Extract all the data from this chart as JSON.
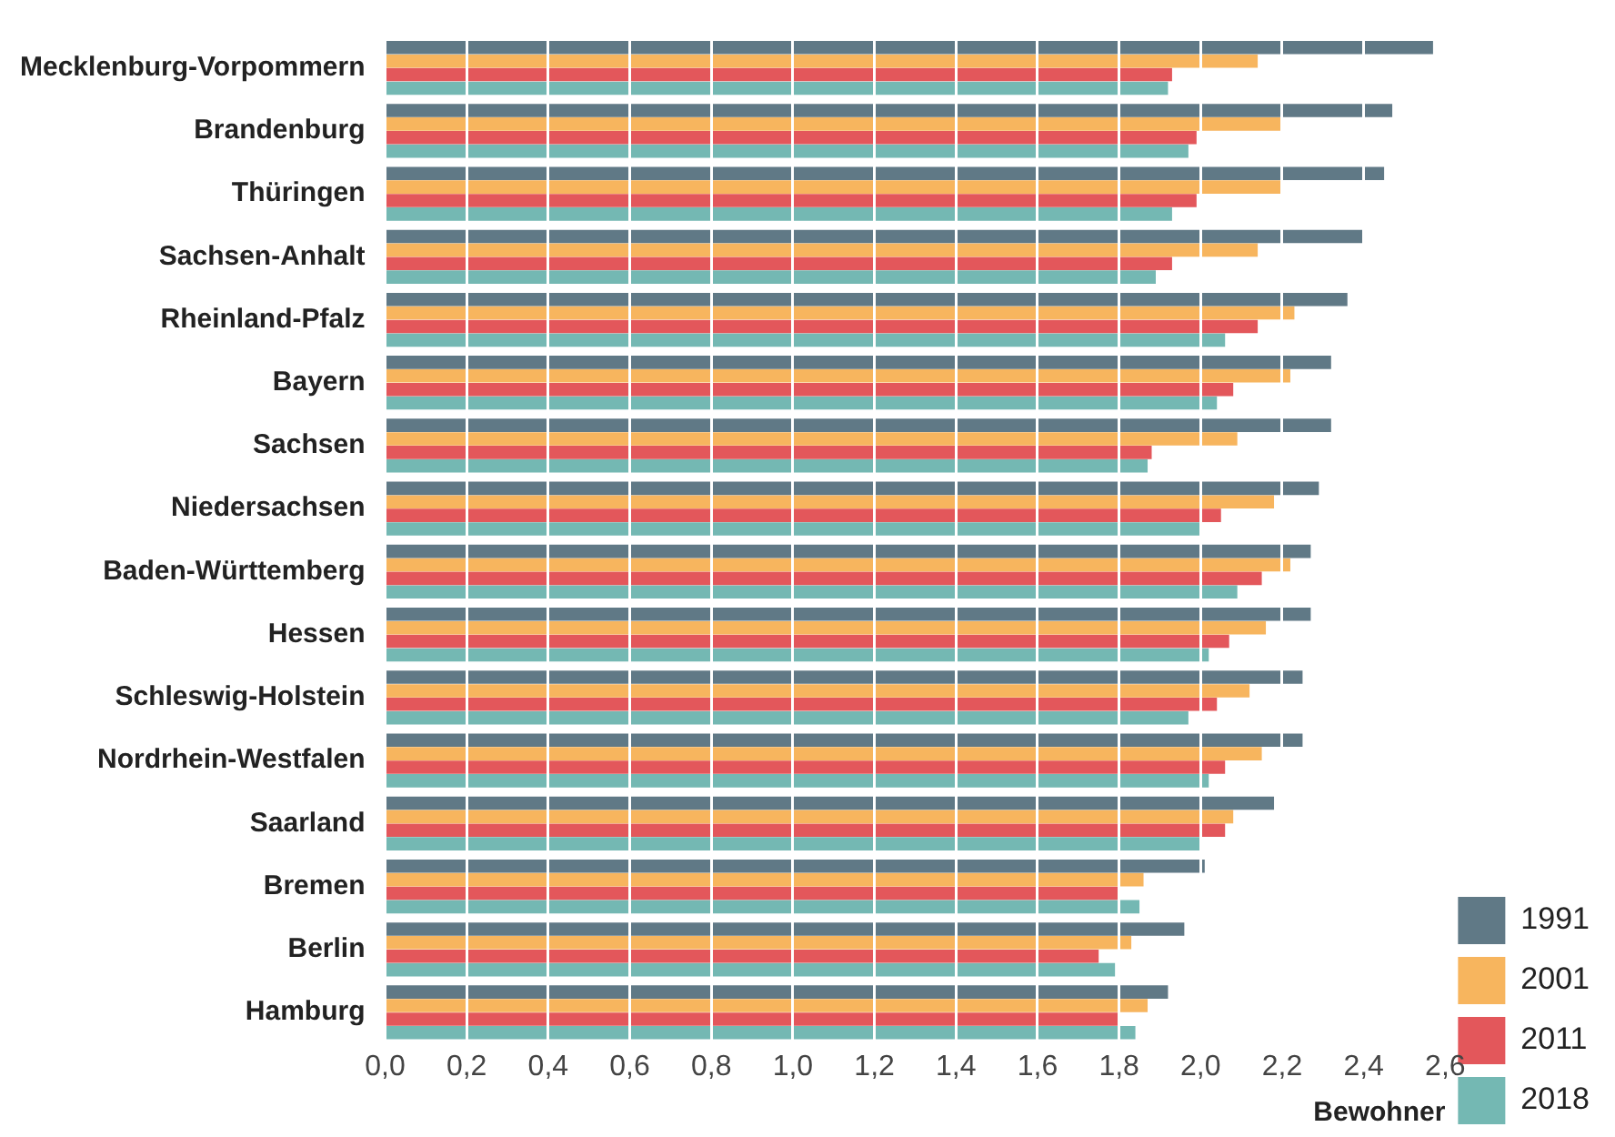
{
  "chart_data": {
    "type": "bar",
    "orientation": "horizontal",
    "xlabel": "Bewohner",
    "categories": [
      "Mecklenburg-Vorpommern",
      "Brandenburg",
      "Thüringen",
      "Sachsen-Anhalt",
      "Rheinland-Pfalz",
      "Bayern",
      "Sachsen",
      "Niedersachsen",
      "Baden-Württemberg",
      "Hessen",
      "Schleswig-Holstein",
      "Nordrhein-Westfalen",
      "Saarland",
      "Bremen",
      "Berlin",
      "Hamburg"
    ],
    "series": [
      {
        "name": "1991",
        "color": "#607986",
        "values": [
          2.57,
          2.47,
          2.45,
          2.4,
          2.36,
          2.32,
          2.32,
          2.29,
          2.27,
          2.27,
          2.25,
          2.25,
          2.18,
          2.01,
          1.96,
          1.92
        ]
      },
      {
        "name": "2001",
        "color": "#f7b55e",
        "values": [
          2.14,
          2.2,
          2.2,
          2.14,
          2.23,
          2.22,
          2.09,
          2.18,
          2.22,
          2.16,
          2.12,
          2.15,
          2.08,
          1.86,
          1.83,
          1.87
        ]
      },
      {
        "name": "2011",
        "color": "#e3575b",
        "values": [
          1.93,
          1.99,
          1.99,
          1.93,
          2.14,
          2.08,
          1.88,
          2.05,
          2.15,
          2.07,
          2.04,
          2.06,
          2.06,
          1.8,
          1.75,
          1.8
        ]
      },
      {
        "name": "2018",
        "color": "#74b8b3",
        "values": [
          1.92,
          1.97,
          1.93,
          1.89,
          2.06,
          2.04,
          1.87,
          2.0,
          2.09,
          2.02,
          1.97,
          2.02,
          2.0,
          1.85,
          1.79,
          1.84
        ]
      }
    ],
    "xlim": [
      0,
      2.6
    ],
    "xticks": [
      {
        "value": 0,
        "label": "0,0"
      },
      {
        "value": 0.2,
        "label": "0,2"
      },
      {
        "value": 0.4,
        "label": "0,4"
      },
      {
        "value": 0.6,
        "label": "0,6"
      },
      {
        "value": 0.8,
        "label": "0,8"
      },
      {
        "value": 1,
        "label": "1,0"
      },
      {
        "value": 1.2,
        "label": "1,2"
      },
      {
        "value": 1.4,
        "label": "1,4"
      },
      {
        "value": 1.6,
        "label": "1,6"
      },
      {
        "value": 1.8,
        "label": "1,8"
      },
      {
        "value": 2,
        "label": "2,0"
      },
      {
        "value": 2.2,
        "label": "2,2"
      },
      {
        "value": 2.4,
        "label": "2,4"
      },
      {
        "value": 2.6,
        "label": "2,6"
      }
    ],
    "grid": "x",
    "legend": "bottom right"
  }
}
